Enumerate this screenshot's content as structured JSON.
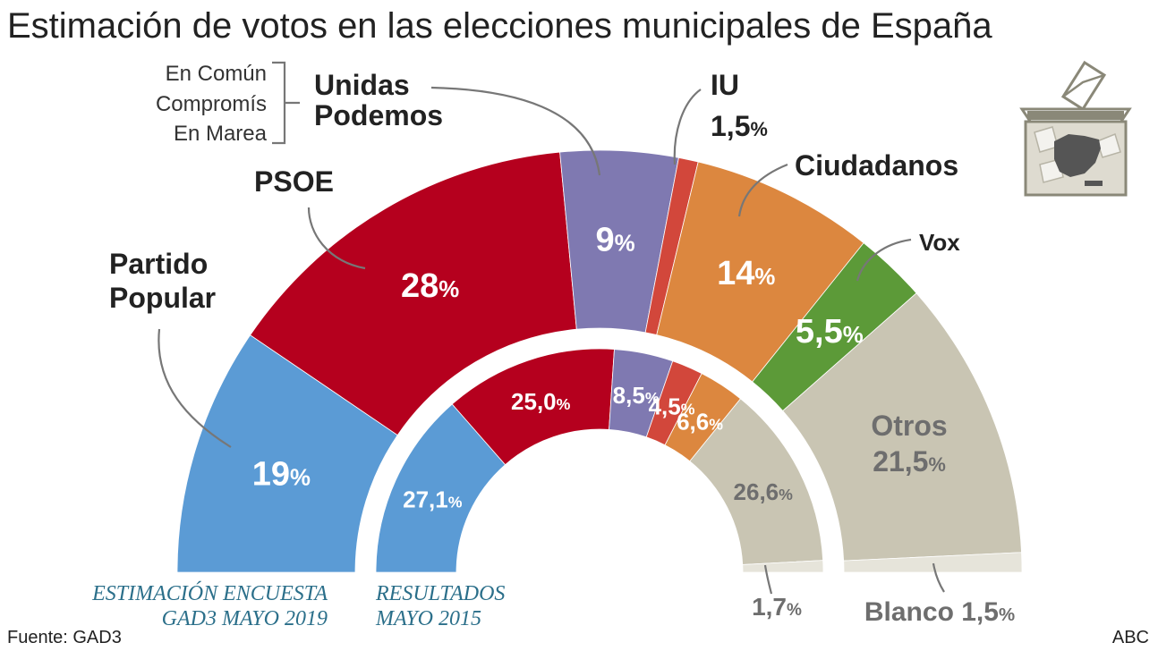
{
  "title": "Estimación de votos en las elecciones municipales de España",
  "labels": {
    "pp_line1": "Partido",
    "pp_line2": "Popular",
    "psoe": "PSOE",
    "up_line1": "Unidas",
    "up_line2": "Podemos",
    "confluences": [
      "En Común",
      "Compromís",
      "En Marea"
    ],
    "iu": "IU",
    "iu_value": "1,5",
    "cs": "Ciudadanos",
    "vox": "Vox",
    "otros": "Otros",
    "blanco": "Blanco",
    "blanco_2015": "1,7",
    "blanco_2019": "1,5",
    "pct": "%"
  },
  "captions": {
    "estimacion_1": "ESTIMACIÓN ENCUESTA",
    "estimacion_2": "GAD3 MAYO 2019",
    "resultados_1": "RESULTADOS",
    "resultados_2": "MAYO 2015"
  },
  "footer": {
    "source": "Fuente: GAD3",
    "brand": "ABC"
  },
  "colors": {
    "pp": "#5b9bd5",
    "psoe": "#b5001e",
    "podemos": "#7f79b1",
    "iu": "#d2473b",
    "cs": "#dc873f",
    "vox": "#5c9a38",
    "otros": "#c9c5b3",
    "blanco": "#e6e4da"
  },
  "chart_data": [
    {
      "type": "pie",
      "subtype": "semicircle",
      "caption": "ESTIMACIÓN ENCUESTA GAD3 MAYO 2019",
      "categories": [
        "Partido Popular",
        "PSOE",
        "Unidas Podemos",
        "IU",
        "Ciudadanos",
        "Vox",
        "Otros",
        "Blanco"
      ],
      "values": [
        19,
        28,
        9,
        1.5,
        14,
        5.5,
        21.5,
        1.5
      ],
      "labels": [
        "19",
        "28",
        "9",
        "",
        "14",
        "5,5",
        "21,5",
        ""
      ]
    },
    {
      "type": "pie",
      "subtype": "semicircle",
      "caption": "RESULTADOS MAYO 2015",
      "categories": [
        "Partido Popular",
        "PSOE",
        "Unidas Podemos",
        "IU",
        "Ciudadanos",
        "Otros",
        "Blanco"
      ],
      "values": [
        27.1,
        25.0,
        8.5,
        4.5,
        6.6,
        26.6,
        1.7
      ],
      "labels": [
        "27,1",
        "25,0",
        "8,5",
        "4,5",
        "6,6",
        "26,6",
        ""
      ]
    }
  ]
}
